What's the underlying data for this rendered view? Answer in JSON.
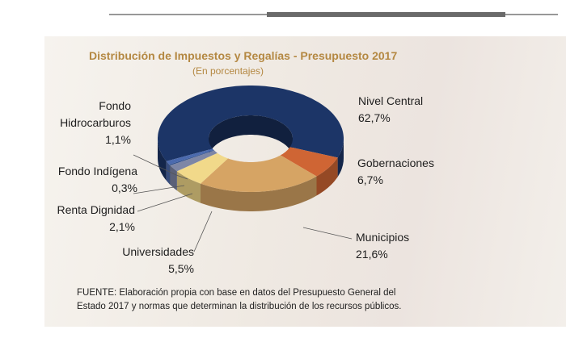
{
  "chart_data": {
    "type": "donut",
    "title": "Distribución de Impuestos y Regalías - Presupuesto 2017",
    "subtitle": "(En porcentajes)",
    "categories": [
      "Nivel Central",
      "Gobernaciones",
      "Municipios",
      "Universidades",
      "Renta Dignidad",
      "Fondo Indígena",
      "Fondo Hidrocarburos"
    ],
    "values": [
      62.7,
      6.7,
      21.6,
      5.5,
      2.1,
      0.3,
      1.1
    ],
    "value_labels": [
      "62,7%",
      "6,7%",
      "21,6%",
      "5,5%",
      "2,1%",
      "0,3%",
      "1,1%"
    ],
    "colors": [
      "#1c3567",
      "#cf6534",
      "#d6a464",
      "#f1d98a",
      "#7d86a6",
      "#2a4c8a",
      "#4b6aae"
    ],
    "source": "FUENTE: Elaboración propia con base en datos del Presupuesto General del Estado 2017 y normas que determinan la distribución de los recursos públicos."
  }
}
